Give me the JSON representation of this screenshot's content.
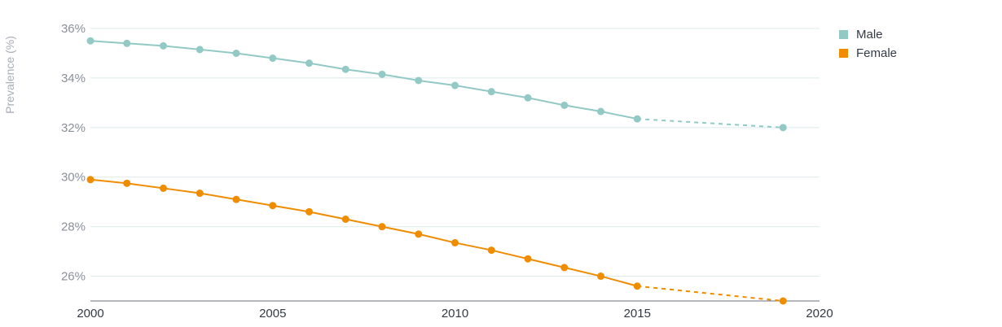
{
  "chart_data": {
    "type": "line",
    "title": "",
    "xlabel": "",
    "ylabel": "Prevalence (%)",
    "xlim": [
      2000,
      2020
    ],
    "ylim": [
      25,
      36
    ],
    "x_ticks": [
      2000,
      2005,
      2010,
      2015,
      2020
    ],
    "y_ticks": [
      26,
      28,
      30,
      32,
      34,
      36
    ],
    "y_tick_suffix": "%",
    "grid": true,
    "legend_position": "top-right",
    "series": [
      {
        "name": "Male",
        "color": "#93c9c5",
        "x": [
          2000,
          2001,
          2002,
          2003,
          2004,
          2005,
          2006,
          2007,
          2008,
          2009,
          2010,
          2011,
          2012,
          2013,
          2014,
          2015,
          2019
        ],
        "values": [
          35.5,
          35.4,
          35.3,
          35.15,
          35.0,
          34.8,
          34.6,
          34.35,
          34.15,
          33.9,
          33.7,
          33.45,
          33.2,
          32.9,
          32.65,
          32.35,
          32.0
        ],
        "projection_from": 2015
      },
      {
        "name": "Female",
        "color": "#ef8c00",
        "x": [
          2000,
          2001,
          2002,
          2003,
          2004,
          2005,
          2006,
          2007,
          2008,
          2009,
          2010,
          2011,
          2012,
          2013,
          2014,
          2015,
          2019
        ],
        "values": [
          29.9,
          29.75,
          29.55,
          29.35,
          29.1,
          28.85,
          28.6,
          28.3,
          28.0,
          27.7,
          27.35,
          27.05,
          26.7,
          26.35,
          26.0,
          25.6,
          25.0
        ],
        "projection_from": 2015
      }
    ]
  }
}
